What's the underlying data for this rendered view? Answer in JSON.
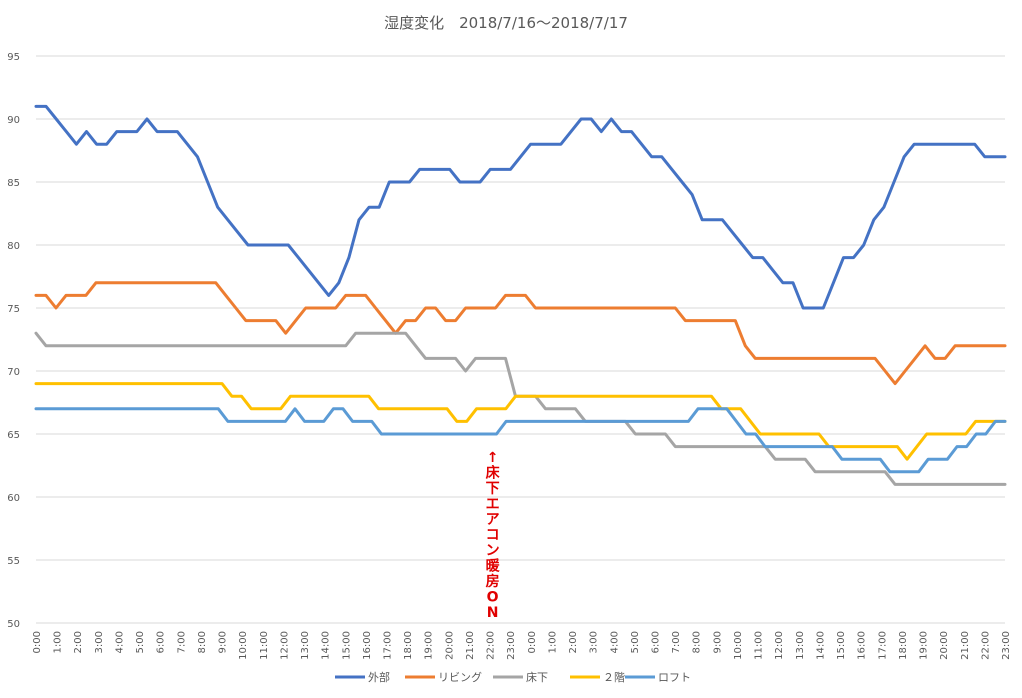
{
  "chart_data": {
    "type": "line",
    "title": "湿度変化　2018/7/16～2018/7/17",
    "xlabel": "",
    "ylabel": "",
    "ylim": [
      50,
      95
    ],
    "yticks": [
      "50",
      "55",
      "60",
      "65",
      "70",
      "75",
      "80",
      "85",
      "90",
      "95"
    ],
    "x_tick_labels": [
      "0:00",
      "1:00",
      "2:00",
      "3:00",
      "4:00",
      "5:00",
      "6:00",
      "7:00",
      "8:00",
      "9:00",
      "10:00",
      "11:00",
      "12:00",
      "13:00",
      "14:00",
      "15:00",
      "16:00",
      "17:00",
      "18:00",
      "19:00",
      "20:00",
      "21:00",
      "22:00",
      "23:00",
      "0:00",
      "1:00",
      "2:00",
      "3:00",
      "4:00",
      "5:00",
      "6:00",
      "7:00",
      "8:00",
      "9:00",
      "10:00",
      "11:00",
      "12:00",
      "13:00",
      "14:00",
      "15:00",
      "16:00",
      "17:00",
      "18:00",
      "19:00",
      "20:00",
      "21:00",
      "22:00",
      "23:00"
    ],
    "grid": true,
    "legend_position": "bottom",
    "annotation": {
      "text": "↑床下エアコン暖房ON",
      "position": "22:00"
    },
    "series": [
      {
        "name": "外部",
        "color": "#4472c4",
        "values": [
          91,
          91,
          90,
          89,
          88,
          89,
          88,
          88,
          89,
          89,
          89,
          90,
          89,
          89,
          89,
          88,
          87,
          85,
          83,
          82,
          81,
          80,
          80,
          80,
          80,
          80,
          79,
          78,
          77,
          76,
          77,
          79,
          82,
          83,
          83,
          85,
          85,
          85,
          86,
          86,
          86,
          86,
          85,
          85,
          85,
          86,
          86,
          86,
          87,
          88,
          88,
          88,
          88,
          89,
          90,
          90,
          89,
          90,
          89,
          89,
          88,
          87,
          87,
          86,
          85,
          84,
          82,
          82,
          82,
          81,
          80,
          79,
          79,
          78,
          77,
          77,
          75,
          75,
          75,
          77,
          79,
          79,
          80,
          82,
          83,
          85,
          87,
          88,
          88,
          88,
          88,
          88,
          88,
          88,
          87,
          87,
          87
        ]
      },
      {
        "name": "リビング",
        "color": "#ed7d31",
        "values": [
          76,
          76,
          75,
          76,
          76,
          76,
          77,
          77,
          77,
          77,
          77,
          77,
          77,
          77,
          77,
          77,
          77,
          77,
          77,
          76,
          75,
          74,
          74,
          74,
          74,
          73,
          74,
          75,
          75,
          75,
          75,
          76,
          76,
          76,
          75,
          74,
          73,
          74,
          74,
          75,
          75,
          74,
          74,
          75,
          75,
          75,
          75,
          76,
          76,
          76,
          75,
          75,
          75,
          75,
          75,
          75,
          75,
          75,
          75,
          75,
          75,
          75,
          75,
          75,
          75,
          74,
          74,
          74,
          74,
          74,
          74,
          72,
          71,
          71,
          71,
          71,
          71,
          71,
          71,
          71,
          71,
          71,
          71,
          71,
          71,
          70,
          69,
          70,
          71,
          72,
          71,
          71,
          72,
          72,
          72,
          72,
          72,
          72
        ]
      },
      {
        "name": "床下",
        "color": "#a5a5a5",
        "values": [
          73,
          72,
          72,
          72,
          72,
          72,
          72,
          72,
          72,
          72,
          72,
          72,
          72,
          72,
          72,
          72,
          72,
          72,
          72,
          72,
          72,
          72,
          72,
          72,
          72,
          72,
          72,
          72,
          72,
          72,
          72,
          72,
          73,
          73,
          73,
          73,
          73,
          73,
          72,
          71,
          71,
          71,
          71,
          70,
          71,
          71,
          71,
          71,
          68,
          68,
          68,
          67,
          67,
          67,
          67,
          66,
          66,
          66,
          66,
          66,
          65,
          65,
          65,
          65,
          64,
          64,
          64,
          64,
          64,
          64,
          64,
          64,
          64,
          64,
          63,
          63,
          63,
          63,
          62,
          62,
          62,
          62,
          62,
          62,
          62,
          62,
          61,
          61,
          61,
          61,
          61,
          61,
          61,
          61,
          61,
          61,
          61,
          61
        ]
      },
      {
        "name": "２階",
        "color": "#ffc000",
        "values": [
          69,
          69,
          69,
          69,
          69,
          69,
          69,
          69,
          69,
          69,
          69,
          69,
          69,
          69,
          69,
          69,
          69,
          69,
          69,
          69,
          68,
          68,
          67,
          67,
          67,
          67,
          68,
          68,
          68,
          68,
          68,
          68,
          68,
          68,
          68,
          67,
          67,
          67,
          67,
          67,
          67,
          67,
          67,
          66,
          66,
          67,
          67,
          67,
          67,
          68,
          68,
          68,
          68,
          68,
          68,
          68,
          68,
          68,
          68,
          68,
          68,
          68,
          68,
          68,
          68,
          68,
          68,
          68,
          68,
          68,
          67,
          67,
          67,
          66,
          65,
          65,
          65,
          65,
          65,
          65,
          65,
          64,
          64,
          64,
          64,
          64,
          64,
          64,
          64,
          63,
          64,
          65,
          65,
          65,
          65,
          65,
          66,
          66,
          66,
          66
        ]
      },
      {
        "name": "ロフト",
        "color": "#5b9bd5",
        "values": [
          67,
          67,
          67,
          67,
          67,
          67,
          67,
          67,
          67,
          67,
          67,
          67,
          67,
          67,
          67,
          67,
          67,
          67,
          67,
          67,
          66,
          66,
          66,
          66,
          66,
          66,
          66,
          67,
          66,
          66,
          66,
          67,
          67,
          66,
          66,
          66,
          65,
          65,
          65,
          65,
          65,
          65,
          65,
          65,
          65,
          65,
          65,
          65,
          65,
          66,
          66,
          66,
          66,
          66,
          66,
          66,
          66,
          66,
          66,
          66,
          66,
          66,
          66,
          66,
          66,
          66,
          66,
          66,
          66,
          67,
          67,
          67,
          67,
          66,
          65,
          65,
          64,
          64,
          64,
          64,
          64,
          64,
          64,
          64,
          63,
          63,
          63,
          63,
          63,
          62,
          62,
          62,
          62,
          63,
          63,
          63,
          64,
          64,
          65,
          65,
          66,
          66
        ]
      }
    ]
  }
}
